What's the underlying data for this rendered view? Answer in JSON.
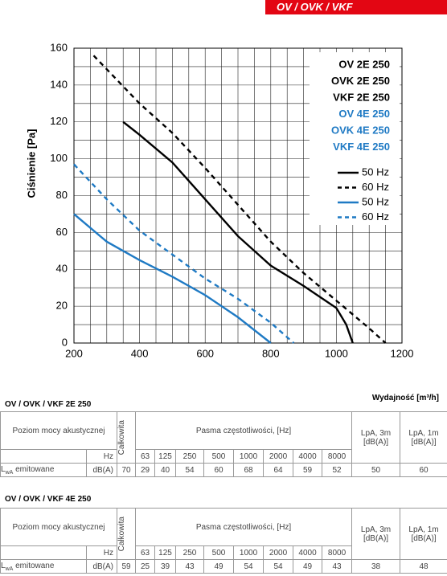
{
  "banner": "OV / OVK / VKF",
  "chart_data": {
    "type": "line",
    "y_label": "Ciśnienie [Pa]",
    "x_label": "Wydajność [m³/h]",
    "xlim": [
      200,
      1200
    ],
    "ylim": [
      0,
      160
    ],
    "xticks": [
      200,
      400,
      600,
      800,
      1000,
      1200
    ],
    "yticks": [
      0,
      20,
      40,
      60,
      80,
      100,
      120,
      140,
      160
    ],
    "xgrid": [
      250,
      300,
      350,
      450,
      500,
      550,
      650,
      700,
      750,
      850,
      900,
      950,
      1050,
      1100,
      1150
    ],
    "ygrid": [
      10,
      30,
      50,
      70,
      90,
      110,
      130,
      150
    ],
    "grid": true,
    "annotations": [
      {
        "text": "OV 2E 250",
        "color": "#000000"
      },
      {
        "text": "OVK 2E 250",
        "color": "#000000"
      },
      {
        "text": "VKF 2E 250",
        "color": "#000000"
      },
      {
        "text": "OV 4E 250",
        "color": "#1f7ac4"
      },
      {
        "text": "OVK 4E 250",
        "color": "#1f7ac4"
      },
      {
        "text": "VKF 4E 250",
        "color": "#1f7ac4"
      }
    ],
    "series": [
      {
        "name": "50 Hz",
        "color": "#000000",
        "dash": false,
        "x": [
          350,
          400,
          500,
          600,
          700,
          800,
          900,
          1000,
          1030,
          1050
        ],
        "values": [
          120,
          113,
          98,
          78,
          58,
          42,
          31,
          19,
          10,
          0
        ]
      },
      {
        "name": "60 Hz",
        "color": "#000000",
        "dash": true,
        "x": [
          260,
          400,
          500,
          600,
          700,
          800,
          900,
          1000,
          1100,
          1150
        ],
        "values": [
          156,
          130,
          114,
          95,
          75,
          55,
          38,
          23,
          8,
          0
        ]
      },
      {
        "name": "50 Hz",
        "color": "#1f7ac4",
        "dash": false,
        "x": [
          200,
          300,
          400,
          500,
          600,
          700,
          800
        ],
        "values": [
          70,
          55,
          45,
          36,
          26,
          14,
          0
        ]
      },
      {
        "name": "60 Hz",
        "color": "#1f7ac4",
        "dash": true,
        "x": [
          200,
          300,
          400,
          500,
          600,
          700,
          800,
          870
        ],
        "values": [
          97,
          78,
          61,
          48,
          35,
          24,
          11,
          0
        ]
      }
    ]
  },
  "tables": [
    {
      "title": "OV / OVK / VKF 2E 250",
      "head": {
        "level": "Poziom mocy akustycznej",
        "total": "Całkowita",
        "bands_title": "Pasma częstotliwości, [Hz]",
        "lpa3": "LpA, 3m [dB(A)]",
        "lpa1": "LpA, 1m [dB(A)]"
      },
      "hz": "Hz",
      "bands": [
        "63",
        "125",
        "250",
        "500",
        "1000",
        "2000",
        "4000",
        "8000"
      ],
      "row": {
        "label": [
          "L",
          "wA",
          " emitowane"
        ],
        "unit": "dB(A)",
        "total": "70",
        "values": [
          "29",
          "40",
          "54",
          "60",
          "68",
          "64",
          "59",
          "52"
        ],
        "lpa3": "50",
        "lpa1": "60"
      }
    },
    {
      "title": "OV / OVK / VKF 4E 250",
      "head": {
        "level": "Poziom mocy akustycznej",
        "total": "Całkowita",
        "bands_title": "Pasma częstotliwości, [Hz]",
        "lpa3": "LpA, 3m [dB(A)]",
        "lpa1": "LpA, 1m [dB(A)]"
      },
      "hz": "Hz",
      "bands": [
        "63",
        "125",
        "250",
        "500",
        "1000",
        "2000",
        "4000",
        "8000"
      ],
      "row": {
        "label": [
          "L",
          "wA",
          " emitowane"
        ],
        "unit": "dB(A)",
        "total": "59",
        "values": [
          "25",
          "39",
          "43",
          "49",
          "54",
          "54",
          "49",
          "43"
        ],
        "lpa3": "38",
        "lpa1": "48"
      }
    }
  ]
}
